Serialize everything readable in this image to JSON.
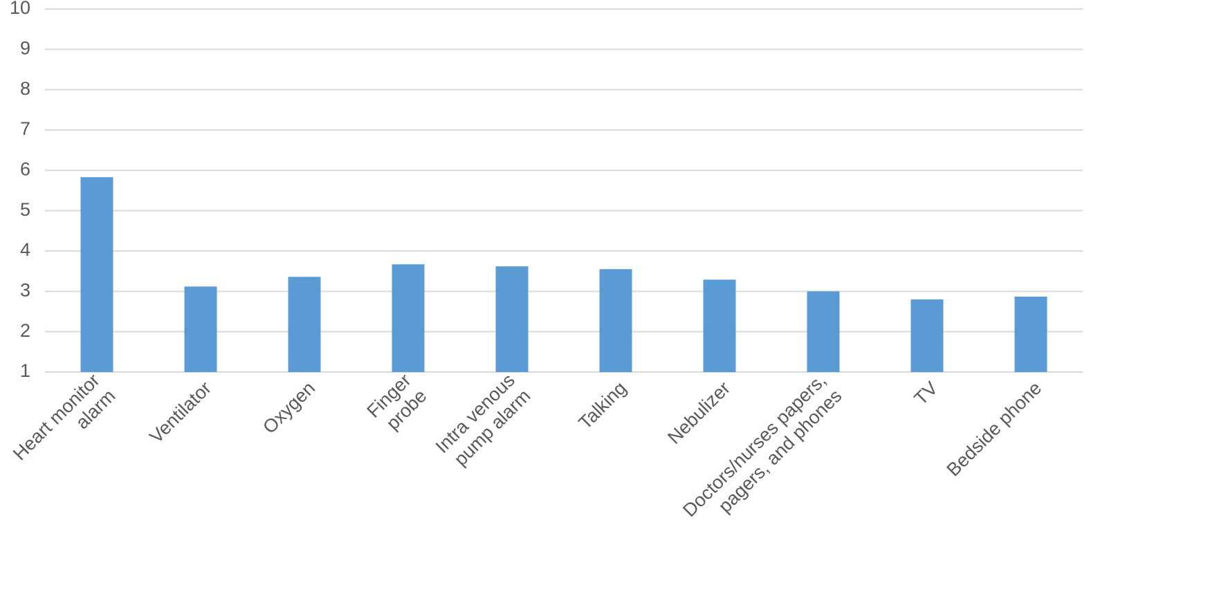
{
  "chart_data": {
    "type": "bar",
    "categories": [
      "Heart monitor\nalarm",
      "Ventilator",
      "Oxygen",
      "Finger\nprobe",
      "Intra venous\npump alarm",
      "Talking",
      "Nebulizer",
      "Doctors/nurses papers,\npagers, and phones",
      "TV",
      "Bedside phone"
    ],
    "values": [
      5.83,
      3.12,
      3.36,
      3.67,
      3.62,
      3.55,
      3.29,
      3.0,
      2.8,
      2.87
    ],
    "color": "#5b9bd5",
    "ylim": [
      1,
      10
    ],
    "yticks": [
      1,
      2,
      3,
      4,
      5,
      6,
      7,
      8,
      9,
      10
    ],
    "grid": true
  }
}
